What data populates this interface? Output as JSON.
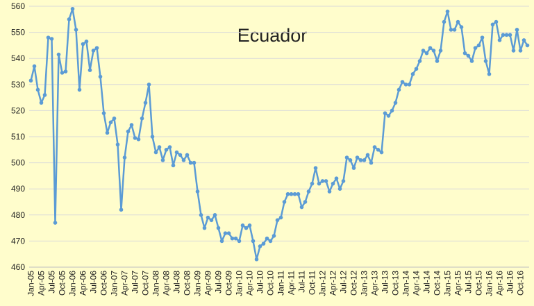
{
  "chart_data": {
    "type": "line",
    "title": "Ecuador",
    "categories": [
      "Jan-05",
      null,
      null,
      "Apr-05",
      null,
      null,
      "Jul-05",
      null,
      null,
      "Oct-05",
      null,
      null,
      "Jan-06",
      null,
      null,
      "Apr-06",
      null,
      null,
      "Jul-06",
      null,
      null,
      "Oct-06",
      null,
      null,
      "Jan-07",
      null,
      null,
      "Apr-07",
      null,
      null,
      "Jul-07",
      null,
      null,
      "Oct-07",
      null,
      null,
      "Jan-08",
      null,
      null,
      "Apr-08",
      null,
      null,
      "Jul-08",
      null,
      null,
      "Oct-08",
      null,
      null,
      "Jan-09",
      null,
      null,
      "Apr-09",
      null,
      null,
      "Jul-09",
      null,
      null,
      "Oct-09",
      null,
      null,
      "Jan-10",
      null,
      null,
      "Apr-10",
      null,
      null,
      "Jul-10",
      null,
      null,
      "Oct-10",
      null,
      null,
      "Jan-11",
      null,
      null,
      "Apr-11",
      null,
      null,
      "Jul-11",
      null,
      null,
      "Oct-11",
      null,
      null,
      "Jan-12",
      null,
      null,
      "Apr-12",
      null,
      null,
      "Jul-12",
      null,
      null,
      "Oct-12",
      null,
      null,
      "Jan-13",
      null,
      null,
      "Apr-13",
      null,
      null,
      "Jul-13",
      null,
      null,
      "Oct-13",
      null,
      null,
      "Jan-14",
      null,
      null,
      "Apr-14",
      null,
      null,
      "Jul-14",
      null,
      null,
      "Oct-14",
      null,
      null,
      "Jan-15",
      null,
      null,
      "Apr-15",
      null,
      null,
      "Jul-15",
      null,
      null,
      "Oct-15",
      null,
      null,
      "Jan-16",
      null,
      null,
      "Apr-16",
      null,
      null,
      "Jul-16",
      null,
      null,
      "Oct-16",
      null,
      null
    ],
    "values": [
      531.5,
      537,
      528,
      523,
      526,
      548,
      547.5,
      477,
      541.5,
      534.5,
      535,
      555,
      559,
      551,
      528,
      545.5,
      546.5,
      535.5,
      543,
      544,
      533,
      519,
      511.5,
      515.5,
      517,
      507,
      482,
      502,
      512,
      514.5,
      509.5,
      509,
      517,
      523,
      530,
      510,
      504,
      506,
      501,
      505,
      506,
      499,
      504,
      503,
      501,
      503,
      500,
      500,
      489,
      480,
      475,
      479,
      478,
      480,
      475,
      470,
      473,
      473,
      471,
      471,
      470,
      476,
      475,
      476,
      470,
      463,
      468,
      469,
      471,
      470,
      472,
      478,
      479,
      485,
      488,
      488,
      488,
      488,
      483,
      485,
      489,
      492,
      498,
      492,
      493,
      493,
      489,
      492,
      494,
      490,
      493,
      502,
      501,
      498,
      502,
      501,
      501,
      503,
      500,
      506,
      505,
      504,
      519,
      518,
      520,
      523,
      528,
      531,
      530,
      530,
      534,
      536,
      539,
      543,
      542,
      544,
      543,
      539,
      543,
      554,
      558,
      551,
      551,
      554,
      552,
      542,
      541,
      539,
      544,
      545,
      548,
      539,
      534,
      553,
      554,
      547,
      549,
      549,
      549,
      543,
      551,
      543,
      547,
      545
    ],
    "color": "#5b9bd5",
    "ylim": [
      460,
      560
    ],
    "yticks": [
      460,
      470,
      480,
      490,
      500,
      510,
      520,
      530,
      540,
      550,
      560
    ],
    "grid": true
  }
}
